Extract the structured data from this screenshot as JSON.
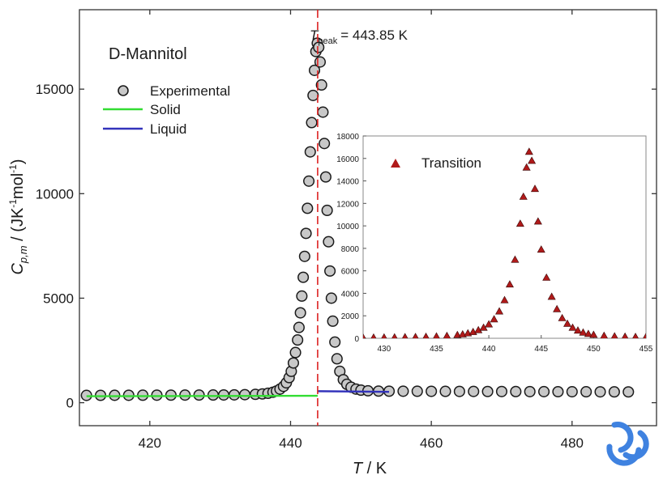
{
  "chart_data": [
    {
      "type": "scatter",
      "label": "D-Mannitol",
      "annotation": {
        "prefix": "T",
        "subscript": "peak",
        "value": "= 443.85 K",
        "x": 443.85
      },
      "xlabel": {
        "italic": "T",
        "rest": " / K"
      },
      "ylabel": {
        "italic_main": "C",
        "italic_sub": "p,m",
        "rest": " / (JK",
        "sup1": "-1",
        "mid": "mol",
        "sup2": "-1",
        "end": ")"
      },
      "xlim": [
        410,
        492
      ],
      "ylim": [
        -1100,
        18800
      ],
      "x_ticks": [
        420,
        440,
        460,
        480
      ],
      "y_ticks": [
        0,
        5000,
        10000,
        15000
      ],
      "legend": {
        "placement": "top-left",
        "entries": [
          {
            "label": "Experimental",
            "marker": "circle"
          },
          {
            "label": "Solid",
            "color": "#33dd33"
          },
          {
            "label": "Liquid",
            "color": "#3333bb"
          }
        ]
      },
      "colors": {
        "experimental_fill": "#c8c8c8",
        "solid": "#33dd33",
        "liquid": "#3333bb",
        "peak_line": "#dd2222"
      },
      "series": [
        {
          "name": "Experimental",
          "points": [
            [
              411,
              350
            ],
            [
              413,
              352
            ],
            [
              415,
              354
            ],
            [
              417,
              356
            ],
            [
              419,
              358
            ],
            [
              421,
              360
            ],
            [
              423,
              362
            ],
            [
              425,
              364
            ],
            [
              427,
              366
            ],
            [
              429,
              368
            ],
            [
              430.5,
              370
            ],
            [
              432,
              375
            ],
            [
              433.5,
              385
            ],
            [
              435,
              400
            ],
            [
              436,
              420
            ],
            [
              436.8,
              450
            ],
            [
              437.5,
              500
            ],
            [
              438,
              560
            ],
            [
              438.5,
              650
            ],
            [
              439,
              780
            ],
            [
              439.4,
              950
            ],
            [
              439.8,
              1200
            ],
            [
              440.1,
              1500
            ],
            [
              440.4,
              1900
            ],
            [
              440.7,
              2400
            ],
            [
              441,
              3000
            ],
            [
              441.2,
              3600
            ],
            [
              441.4,
              4300
            ],
            [
              441.6,
              5100
            ],
            [
              441.8,
              6000
            ],
            [
              442,
              7000
            ],
            [
              442.2,
              8100
            ],
            [
              442.4,
              9300
            ],
            [
              442.6,
              10600
            ],
            [
              442.8,
              12000
            ],
            [
              443,
              13400
            ],
            [
              443.2,
              14700
            ],
            [
              443.4,
              15900
            ],
            [
              443.6,
              16800
            ],
            [
              443.8,
              17200
            ],
            [
              444,
              17000
            ],
            [
              444.2,
              16300
            ],
            [
              444.4,
              15200
            ],
            [
              444.6,
              13900
            ],
            [
              444.8,
              12400
            ],
            [
              445,
              10800
            ],
            [
              445.2,
              9200
            ],
            [
              445.4,
              7700
            ],
            [
              445.6,
              6300
            ],
            [
              445.8,
              5000
            ],
            [
              446,
              3900
            ],
            [
              446.3,
              2900
            ],
            [
              446.6,
              2100
            ],
            [
              447,
              1500
            ],
            [
              447.5,
              1100
            ],
            [
              448,
              880
            ],
            [
              448.6,
              740
            ],
            [
              449.3,
              650
            ],
            [
              450,
              600
            ],
            [
              451,
              570
            ],
            [
              452.5,
              555
            ],
            [
              454,
              550
            ],
            [
              456,
              548
            ],
            [
              458,
              546
            ],
            [
              460,
              544
            ],
            [
              462,
              542
            ],
            [
              464,
              540
            ],
            [
              466,
              538
            ],
            [
              468,
              536
            ],
            [
              470,
              534
            ],
            [
              472,
              532
            ],
            [
              474,
              530
            ],
            [
              476,
              528
            ],
            [
              478,
              526
            ],
            [
              480,
              524
            ],
            [
              482,
              522
            ],
            [
              484,
              520
            ],
            [
              486,
              518
            ],
            [
              488,
              516
            ]
          ]
        },
        {
          "name": "Solid",
          "points": [
            [
              411,
              310
            ],
            [
              443.85,
              330
            ]
          ]
        },
        {
          "name": "Liquid",
          "points": [
            [
              443.85,
              550
            ],
            [
              454,
              520
            ]
          ]
        }
      ]
    },
    {
      "type": "scatter",
      "inset": true,
      "xlim": [
        428,
        455
      ],
      "ylim": [
        0,
        18000
      ],
      "x_ticks": [
        430,
        435,
        440,
        445,
        450,
        455
      ],
      "y_ticks": [
        0,
        2000,
        4000,
        6000,
        8000,
        10000,
        12000,
        14000,
        16000,
        18000
      ],
      "legend": {
        "placement": "top-left",
        "entries": [
          {
            "label": "Transition",
            "marker": "triangle",
            "color": "#b01a1a"
          }
        ]
      },
      "series": [
        {
          "name": "Transition",
          "points": [
            [
              428,
              60
            ],
            [
              429,
              70
            ],
            [
              430,
              80
            ],
            [
              431,
              90
            ],
            [
              432,
              105
            ],
            [
              433,
              120
            ],
            [
              434,
              140
            ],
            [
              435,
              170
            ],
            [
              436,
              220
            ],
            [
              437,
              300
            ],
            [
              437.5,
              360
            ],
            [
              438,
              450
            ],
            [
              438.5,
              570
            ],
            [
              439,
              730
            ],
            [
              439.5,
              950
            ],
            [
              440,
              1250
            ],
            [
              440.5,
              1700
            ],
            [
              441,
              2400
            ],
            [
              441.5,
              3400
            ],
            [
              442,
              4800
            ],
            [
              442.5,
              7000
            ],
            [
              443,
              10200
            ],
            [
              443.3,
              12600
            ],
            [
              443.6,
              15200
            ],
            [
              443.85,
              16600
            ],
            [
              444.1,
              15800
            ],
            [
              444.4,
              13300
            ],
            [
              444.7,
              10400
            ],
            [
              445,
              7900
            ],
            [
              445.5,
              5400
            ],
            [
              446,
              3700
            ],
            [
              446.5,
              2600
            ],
            [
              447,
              1800
            ],
            [
              447.5,
              1300
            ],
            [
              448,
              950
            ],
            [
              448.5,
              700
            ],
            [
              449,
              520
            ],
            [
              449.5,
              400
            ],
            [
              450,
              320
            ],
            [
              451,
              230
            ],
            [
              452,
              180
            ],
            [
              453,
              150
            ],
            [
              454,
              130
            ],
            [
              455,
              120
            ]
          ]
        }
      ]
    }
  ],
  "logo": {
    "name": "journal-logo",
    "color": "#3f82e0"
  }
}
